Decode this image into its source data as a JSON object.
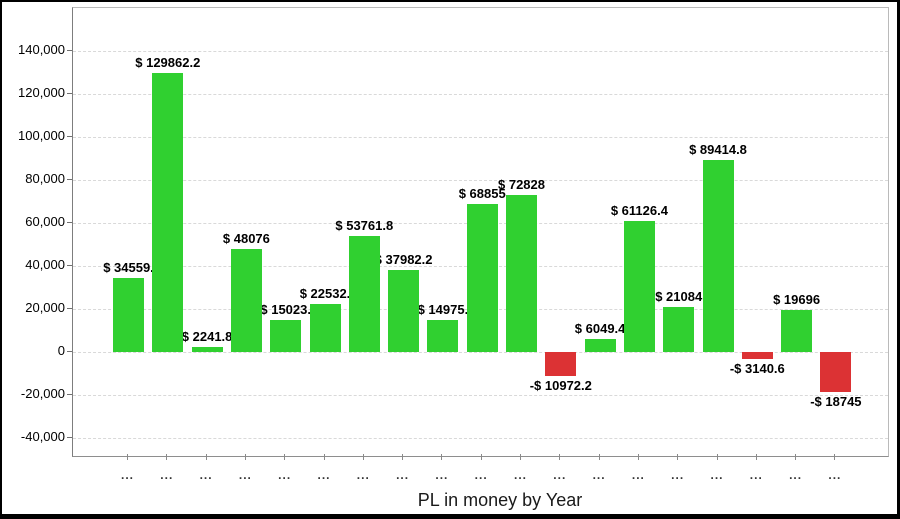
{
  "chart_data": {
    "type": "bar",
    "title": "PL in money by Year",
    "xlabel": "PL in money by Year",
    "ylabel": "",
    "x_tick_label": "...",
    "ylim": [
      -48800,
      160000
    ],
    "grid": true,
    "legend": "none",
    "colors": {
      "positive": "#30d030",
      "negative": "#dc3234",
      "grid": "#d9d9d9",
      "axis": "#8e8e8e",
      "label_text": "#000000"
    },
    "y_ticks": [
      {
        "value": 140000,
        "label": "140,000"
      },
      {
        "value": 120000,
        "label": "120,000"
      },
      {
        "value": 100000,
        "label": "100,000"
      },
      {
        "value": 80000,
        "label": "80,000"
      },
      {
        "value": 60000,
        "label": "60,000"
      },
      {
        "value": 40000,
        "label": "40,000"
      },
      {
        "value": 20000,
        "label": "20,000"
      },
      {
        "value": 0,
        "label": "0"
      },
      {
        "value": -20000,
        "label": "-20,000"
      },
      {
        "value": -40000,
        "label": "-40,000"
      }
    ],
    "bars": [
      {
        "label": "$ 34559.",
        "value": 34559
      },
      {
        "label": "$ 129862.2",
        "value": 129862.2
      },
      {
        "label": "$ 2241.8",
        "value": 2241.8
      },
      {
        "label": "$ 48076",
        "value": 48076
      },
      {
        "label": "$ 15023.",
        "value": 15023
      },
      {
        "label": "$ 22532.",
        "value": 22532
      },
      {
        "label": "$ 53761.8",
        "value": 53761.8
      },
      {
        "label": "$ 37982.2",
        "value": 37982.2
      },
      {
        "label": "$ 14975.",
        "value": 14975
      },
      {
        "label": "$ 68855",
        "value": 68855
      },
      {
        "label": "$ 72828",
        "value": 72828
      },
      {
        "label": "-$ 10972.2",
        "value": -10972.2
      },
      {
        "label": "$ 6049.4",
        "value": 6049.4
      },
      {
        "label": "$ 61126.4",
        "value": 61126.4
      },
      {
        "label": "$ 21084",
        "value": 21084
      },
      {
        "label": "$ 89414.8",
        "value": 89414.8
      },
      {
        "label": "-$ 3140.6",
        "value": -3140.6
      },
      {
        "label": "$ 19696",
        "value": 19696
      },
      {
        "label": "-$ 18745",
        "value": -18745
      }
    ]
  }
}
